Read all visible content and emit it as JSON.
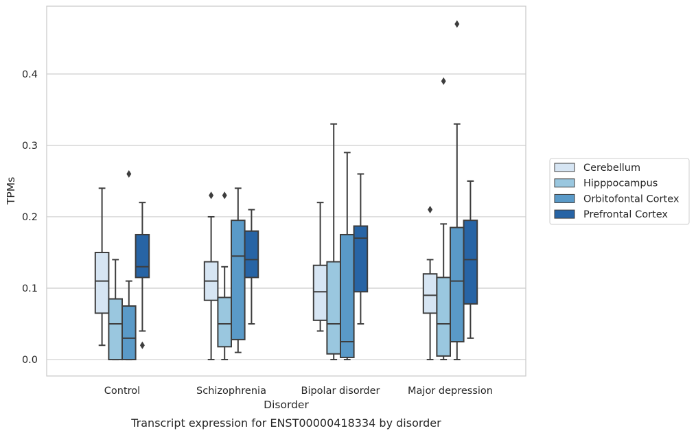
{
  "chart_data": {
    "type": "box",
    "caption": "Transcript expression for ENST00000418334 by disorder",
    "xlabel": "Disorder",
    "ylabel": "TPMs",
    "ylim": [
      -0.023,
      0.495
    ],
    "yticks": [
      0.0,
      0.1,
      0.2,
      0.3,
      0.4
    ],
    "ytick_labels": [
      "0.0",
      "0.1",
      "0.2",
      "0.3",
      "0.4"
    ],
    "grid": "y",
    "legend_position": "right",
    "categories": [
      "Control",
      "Schizophrenia",
      "Bipolar disorder",
      "Major depression"
    ],
    "series": [
      {
        "name": "Cerebellum",
        "color": "#d6e5f3",
        "boxes": [
          {
            "whislo": 0.02,
            "q1": 0.065,
            "med": 0.11,
            "q3": 0.15,
            "whishi": 0.24,
            "fliers": []
          },
          {
            "whislo": 0.0,
            "q1": 0.083,
            "med": 0.11,
            "q3": 0.137,
            "whishi": 0.2,
            "fliers": [
              0.23
            ]
          },
          {
            "whislo": 0.04,
            "q1": 0.055,
            "med": 0.095,
            "q3": 0.132,
            "whishi": 0.22,
            "fliers": []
          },
          {
            "whislo": 0.0,
            "q1": 0.065,
            "med": 0.09,
            "q3": 0.12,
            "whishi": 0.14,
            "fliers": [
              0.21
            ]
          }
        ]
      },
      {
        "name": "Hipppocampus",
        "color": "#9ac7df",
        "boxes": [
          {
            "whislo": 0.0,
            "q1": 0.0,
            "med": 0.05,
            "q3": 0.085,
            "whishi": 0.14,
            "fliers": []
          },
          {
            "whislo": 0.0,
            "q1": 0.018,
            "med": 0.05,
            "q3": 0.087,
            "whishi": 0.13,
            "fliers": [
              0.23
            ]
          },
          {
            "whislo": 0.0,
            "q1": 0.008,
            "med": 0.05,
            "q3": 0.137,
            "whishi": 0.33,
            "fliers": []
          },
          {
            "whislo": 0.0,
            "q1": 0.005,
            "med": 0.05,
            "q3": 0.115,
            "whishi": 0.19,
            "fliers": [
              0.39
            ]
          }
        ]
      },
      {
        "name": "Orbitofontal Cortex",
        "color": "#5a9ac8",
        "boxes": [
          {
            "whislo": 0.0,
            "q1": 0.0,
            "med": 0.03,
            "q3": 0.075,
            "whishi": 0.11,
            "fliers": [
              0.26
            ]
          },
          {
            "whislo": 0.01,
            "q1": 0.028,
            "med": 0.145,
            "q3": 0.195,
            "whishi": 0.24,
            "fliers": []
          },
          {
            "whislo": 0.0,
            "q1": 0.003,
            "med": 0.025,
            "q3": 0.175,
            "whishi": 0.29,
            "fliers": []
          },
          {
            "whislo": 0.0,
            "q1": 0.025,
            "med": 0.11,
            "q3": 0.185,
            "whishi": 0.33,
            "fliers": [
              0.47
            ]
          }
        ]
      },
      {
        "name": "Prefrontal Cortex",
        "color": "#2764a5",
        "boxes": [
          {
            "whislo": 0.04,
            "q1": 0.115,
            "med": 0.13,
            "q3": 0.175,
            "whishi": 0.22,
            "fliers": [
              0.02
            ]
          },
          {
            "whislo": 0.05,
            "q1": 0.115,
            "med": 0.14,
            "q3": 0.18,
            "whishi": 0.21,
            "fliers": []
          },
          {
            "whislo": 0.05,
            "q1": 0.095,
            "med": 0.17,
            "q3": 0.187,
            "whishi": 0.26,
            "fliers": []
          },
          {
            "whislo": 0.03,
            "q1": 0.078,
            "med": 0.14,
            "q3": 0.195,
            "whishi": 0.25,
            "fliers": []
          }
        ]
      }
    ]
  }
}
